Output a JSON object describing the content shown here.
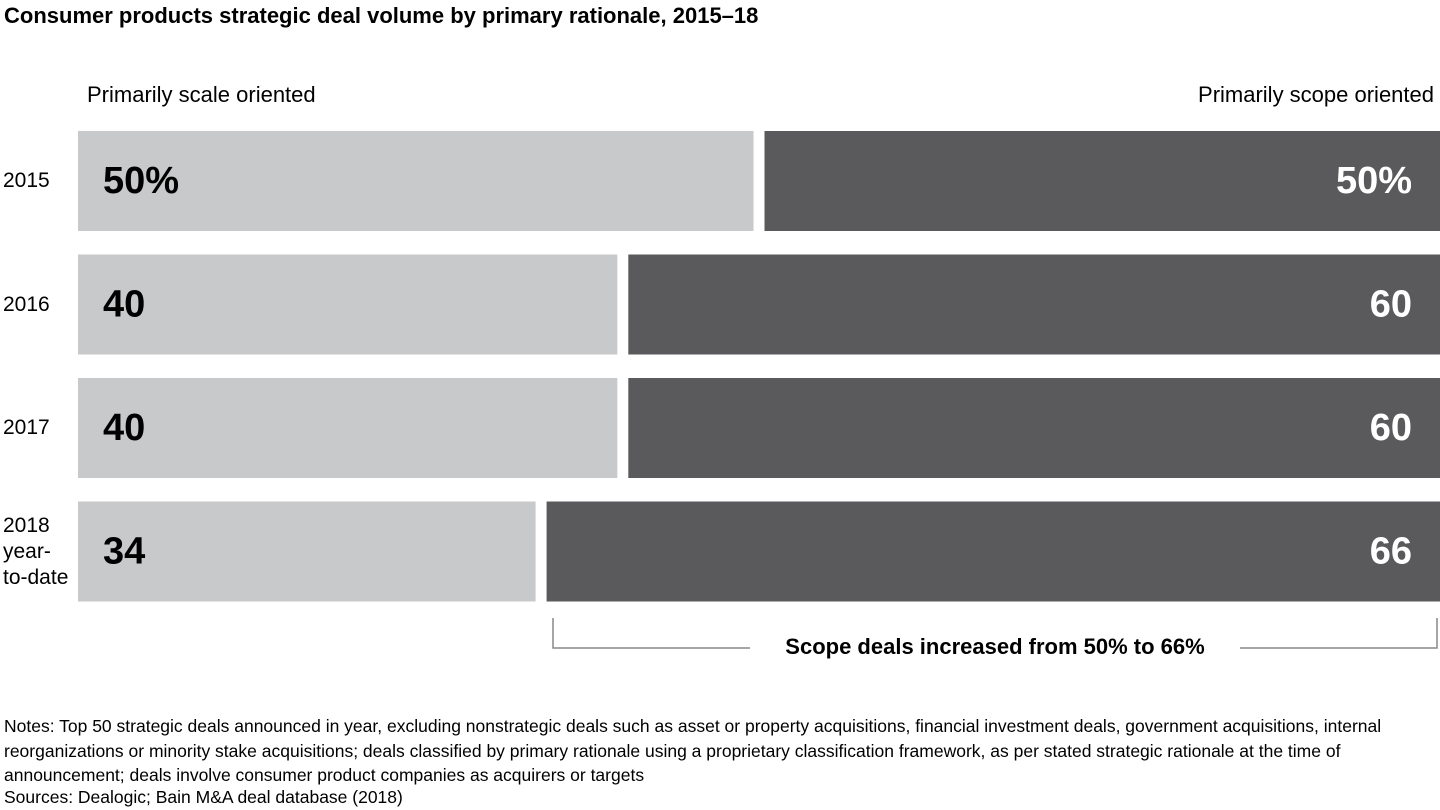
{
  "chart_data": {
    "type": "stacked-bar-horizontal",
    "title": "Consumer products strategic deal volume by primary rationale, 2015–18",
    "categories": [
      "2015",
      "2016",
      "2017",
      "2018 year-to-date"
    ],
    "series": [
      {
        "name": "Primarily scale oriented",
        "color": "#c8c9cb",
        "label_color": "#000000",
        "values": [
          50,
          40,
          40,
          34
        ],
        "value_labels": [
          "50%",
          "40",
          "40",
          "34"
        ]
      },
      {
        "name": "Primarily scope oriented",
        "color": "#5a5a5c",
        "label_color": "#ffffff",
        "values": [
          50,
          60,
          60,
          66
        ],
        "value_labels": [
          "50%",
          "60",
          "60",
          "66"
        ]
      }
    ],
    "annotation": "Scope deals increased from 50% to 66%",
    "notes": "Notes: Top 50 strategic deals announced in year, excluding nonstrategic deals such as asset or property acquisitions, financial investment deals, government acquisitions, internal reorganizations or minority stake acquisitions; deals classified by primary rationale using a proprietary classification framework, as per stated strategic rationale at the time of announcement; deals involve consumer product companies as acquirers or targets",
    "sources": "Sources: Dealogic; Bain M&A deal database (2018)"
  }
}
